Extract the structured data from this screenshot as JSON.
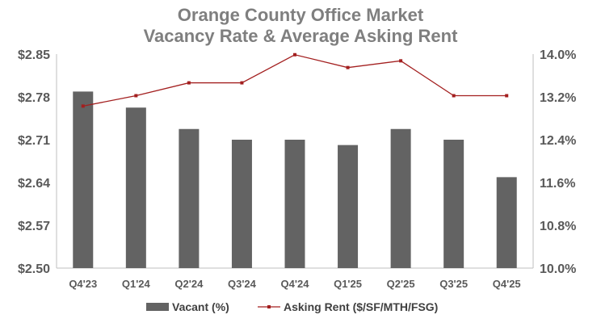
{
  "chart_data": {
    "type": "bar+line",
    "title_lines": [
      "Orange County Office Market",
      "Vacancy Rate & Average Asking Rent"
    ],
    "categories": [
      "Q4'23",
      "Q1'24",
      "Q2'24",
      "Q3'24",
      "Q4'24",
      "Q1'25",
      "Q2'25",
      "Q3'25",
      "Q4'25"
    ],
    "left_axis": {
      "ticks": [
        "$2.85",
        "$2.78",
        "$2.71",
        "$2.64",
        "$2.57",
        "$2.50"
      ],
      "ylim": [
        2.5,
        2.85
      ]
    },
    "right_axis": {
      "ticks": [
        "14.0%",
        "13.2%",
        "12.4%",
        "11.6%",
        "10.8%",
        "10.0%"
      ],
      "ylim": [
        10.0,
        14.0
      ]
    },
    "series": [
      {
        "name": "Vacant (%)",
        "kind": "bar",
        "axis": "right",
        "color": "#636363",
        "values": [
          13.3,
          13.0,
          12.6,
          12.4,
          12.4,
          12.3,
          12.6,
          12.4,
          11.7
        ]
      },
      {
        "name": "Asking Rent ($/SF/MTH/FSG)",
        "kind": "line",
        "axis": "left",
        "color": "#a31f1f",
        "values": [
          2.765,
          2.782,
          2.803,
          2.803,
          2.849,
          2.828,
          2.839,
          2.782,
          2.782
        ]
      }
    ],
    "legend_position": "bottom",
    "grid": false
  }
}
